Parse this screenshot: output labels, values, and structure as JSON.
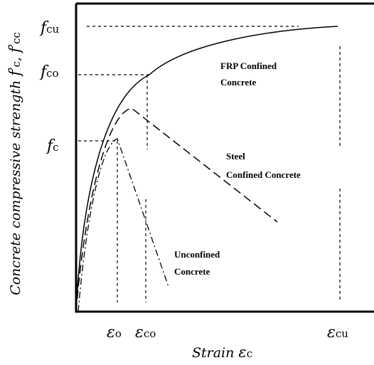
{
  "axes": {
    "y_label": {
      "text": "Concrete compressive strength ",
      "f1": "f",
      "prime1": "′",
      "s1": "c",
      "sep": ", ",
      "f2": "f",
      "prime2": "′",
      "s2": "cc"
    },
    "x_label": {
      "text": "Strain ",
      "symbol": "ε",
      "subscript": "c"
    }
  },
  "y_marks": [
    {
      "symbol": "f",
      "subscript": "cu"
    },
    {
      "symbol": "f",
      "subscript": "co"
    },
    {
      "symbol": "f",
      "subscript": "c"
    }
  ],
  "x_marks": [
    {
      "symbol": "ε",
      "subscript": "o"
    },
    {
      "symbol": "ε",
      "subscript": "co"
    },
    {
      "symbol": "ε",
      "subscript": "cu"
    }
  ],
  "curves": [
    {
      "lines": [
        "FRP Confined",
        "Concrete"
      ]
    },
    {
      "lines": [
        "Steel",
        "Confined Concrete"
      ]
    },
    {
      "lines": [
        "Unconfined",
        "Concrete"
      ]
    }
  ]
}
